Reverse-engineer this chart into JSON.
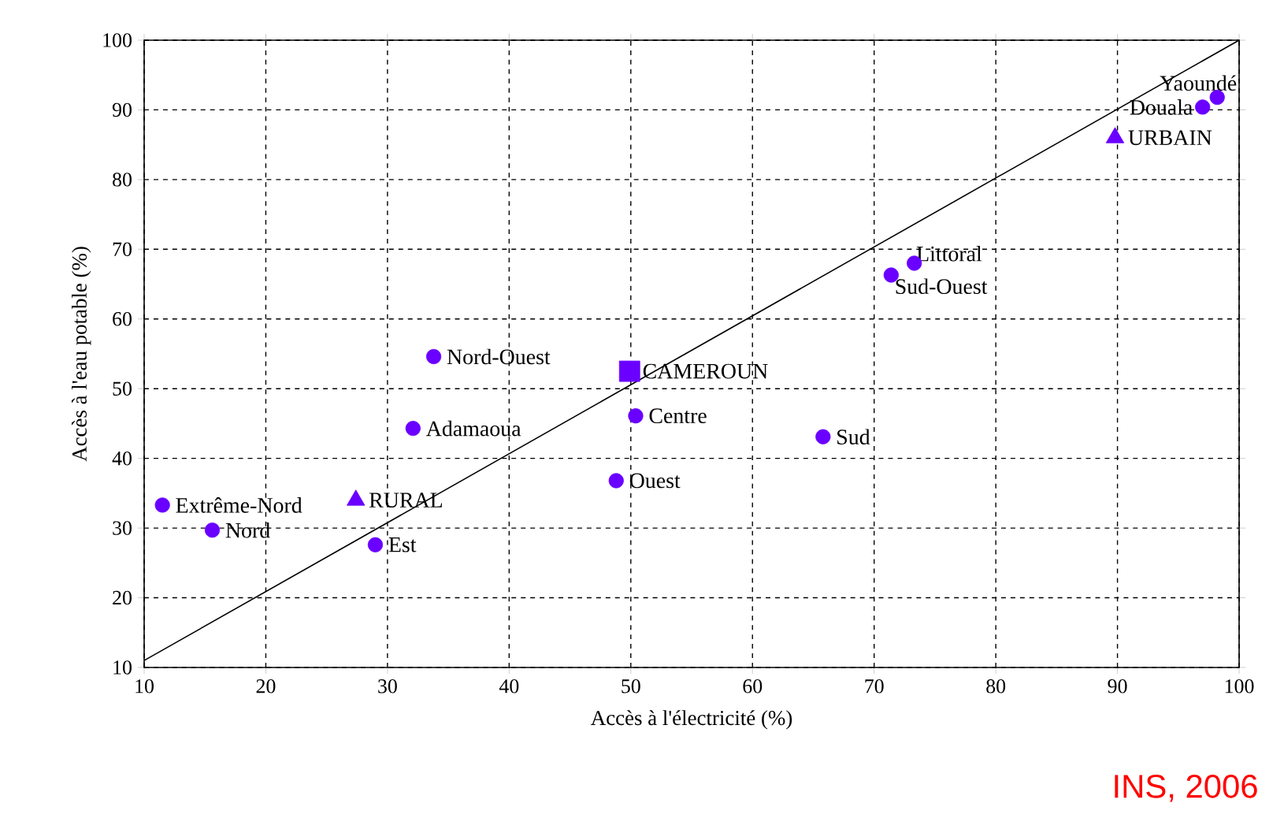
{
  "chart_data": {
    "type": "scatter",
    "xlabel": "Accès à l'électricité (%)",
    "ylabel": "Accès à l'eau potable (%)",
    "xlim": [
      10,
      100
    ],
    "ylim": [
      10,
      100
    ],
    "xticks": [
      10,
      20,
      30,
      40,
      50,
      60,
      70,
      80,
      90,
      100
    ],
    "yticks": [
      10,
      20,
      30,
      40,
      50,
      60,
      70,
      80,
      90,
      100
    ],
    "grid": true,
    "series": [
      {
        "color": "#6a00ff",
        "marker": "circle",
        "x": [
          98.2,
          97.0,
          73.3,
          71.4,
          33.8,
          50.4,
          32.1,
          65.8,
          48.8,
          11.5,
          15.6,
          29.0
        ],
        "values": [
          91.8,
          90.4,
          68.0,
          66.3,
          54.6,
          46.1,
          44.3,
          43.1,
          36.8,
          33.3,
          29.7,
          27.6
        ]
      },
      {
        "color": "#6a00ff",
        "marker": "triangle",
        "x": [
          89.8,
          27.4
        ],
        "values": [
          86.0,
          34.0
        ]
      },
      {
        "color": "#6a00ff",
        "marker": "square",
        "x": [
          49.9
        ],
        "values": [
          52.5
        ]
      },
      {
        "type": "line",
        "color": "#000000",
        "marker": "none",
        "x": [
          10,
          100
        ],
        "values": [
          11,
          100
        ]
      }
    ],
    "annotations": [
      {
        "text": "Yaoundé",
        "x": 98.2,
        "y": 91.8
      },
      {
        "text": "Douala",
        "x": 97.0,
        "y": 90.4
      },
      {
        "text": "Littoral",
        "x": 73.3,
        "y": 68.0
      },
      {
        "text": "Sud-Ouest",
        "x": 71.4,
        "y": 66.3
      },
      {
        "text": "Nord-Ouest",
        "x": 33.8,
        "y": 54.6
      },
      {
        "text": "Centre",
        "x": 50.4,
        "y": 46.1
      },
      {
        "text": "Adamaoua",
        "x": 32.1,
        "y": 44.3
      },
      {
        "text": "Sud",
        "x": 65.8,
        "y": 43.1
      },
      {
        "text": "Ouest",
        "x": 48.8,
        "y": 36.8
      },
      {
        "text": "Extrême-Nord",
        "x": 11.5,
        "y": 33.3
      },
      {
        "text": "Nord",
        "x": 15.6,
        "y": 29.7
      },
      {
        "text": "Est",
        "x": 29.0,
        "y": 27.6
      },
      {
        "text": "URBAIN",
        "x": 89.8,
        "y": 86.0
      },
      {
        "text": "RURAL",
        "x": 27.4,
        "y": 34.0
      },
      {
        "text": "CAMEROUN",
        "x": 49.9,
        "y": 52.5
      },
      "INS, 2006"
    ]
  }
}
